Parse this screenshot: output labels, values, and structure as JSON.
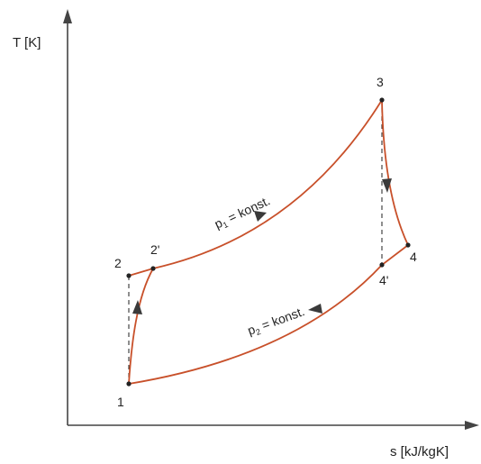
{
  "axes": {
    "y_label": "T [K]",
    "x_label": "s [kJ/kgK]"
  },
  "points": {
    "p1": "1",
    "p2": "2",
    "p2s": "2'",
    "p3": "3",
    "p4": "4",
    "p4s": "4'"
  },
  "isobars": {
    "high": {
      "var": "p",
      "sub": "1",
      "text": " = konst."
    },
    "low": {
      "var": "p",
      "sub": "2",
      "text": " = konst."
    }
  },
  "colors": {
    "process_line": "#c8502a",
    "axis": "#444444",
    "text": "#222222"
  }
}
